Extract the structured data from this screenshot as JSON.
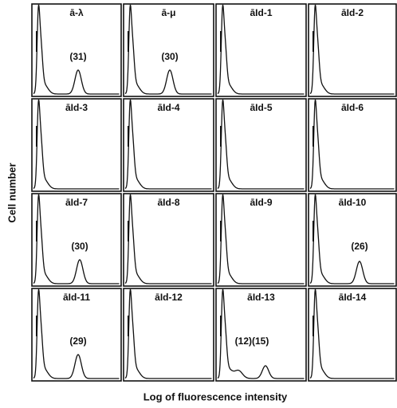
{
  "figure": {
    "y_label": "Cell number",
    "x_label": "Log of fluorescence intensity",
    "panels": [
      {
        "label": "ā-λ",
        "annotation": "(31)"
      },
      {
        "label": "ā-μ",
        "annotation": "(30)"
      },
      {
        "label": "āId-1"
      },
      {
        "label": "āId-2"
      },
      {
        "label": "āId-3"
      },
      {
        "label": "āId-4"
      },
      {
        "label": "āId-5"
      },
      {
        "label": "āId-6"
      },
      {
        "label": "āId-7",
        "annotation": "(30)"
      },
      {
        "label": "āId-8"
      },
      {
        "label": "āId-9"
      },
      {
        "label": "āId-10",
        "annotation": "(26)"
      },
      {
        "label": "āId-11",
        "annotation": "(29)"
      },
      {
        "label": "āId-12"
      },
      {
        "label": "āId-13",
        "annotation": "(12)(15)"
      },
      {
        "label": "āId-14"
      }
    ]
  }
}
